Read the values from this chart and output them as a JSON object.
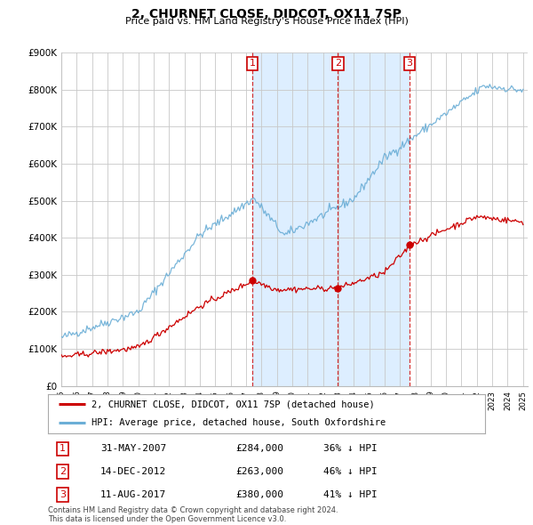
{
  "title": "2, CHURNET CLOSE, DIDCOT, OX11 7SP",
  "subtitle": "Price paid vs. HM Land Registry's House Price Index (HPI)",
  "legend_line1": "2, CHURNET CLOSE, DIDCOT, OX11 7SP (detached house)",
  "legend_line2": "HPI: Average price, detached house, South Oxfordshire",
  "footnote1": "Contains HM Land Registry data © Crown copyright and database right 2024.",
  "footnote2": "This data is licensed under the Open Government Licence v3.0.",
  "sales": [
    {
      "num": "1",
      "date": "31-MAY-2007",
      "price": "£284,000",
      "hpi": "36% ↓ HPI",
      "year": 2007.42
    },
    {
      "num": "2",
      "date": "14-DEC-2012",
      "price": "£263,000",
      "hpi": "46% ↓ HPI",
      "year": 2012.96
    },
    {
      "num": "3",
      "date": "11-AUG-2017",
      "price": "£380,000",
      "hpi": "41% ↓ HPI",
      "year": 2017.62
    }
  ],
  "sale_marker_prices": [
    284000,
    263000,
    380000
  ],
  "ylim": [
    0,
    900000
  ],
  "xlim_start": 1995.0,
  "xlim_end": 2025.3,
  "hpi_color": "#6baed6",
  "price_color": "#cc0000",
  "vline_color": "#cc0000",
  "grid_color": "#c8c8c8",
  "shade_color": "#ddeeff",
  "background_color": "#ffffff",
  "legend_box_color": "#aaaaaa"
}
